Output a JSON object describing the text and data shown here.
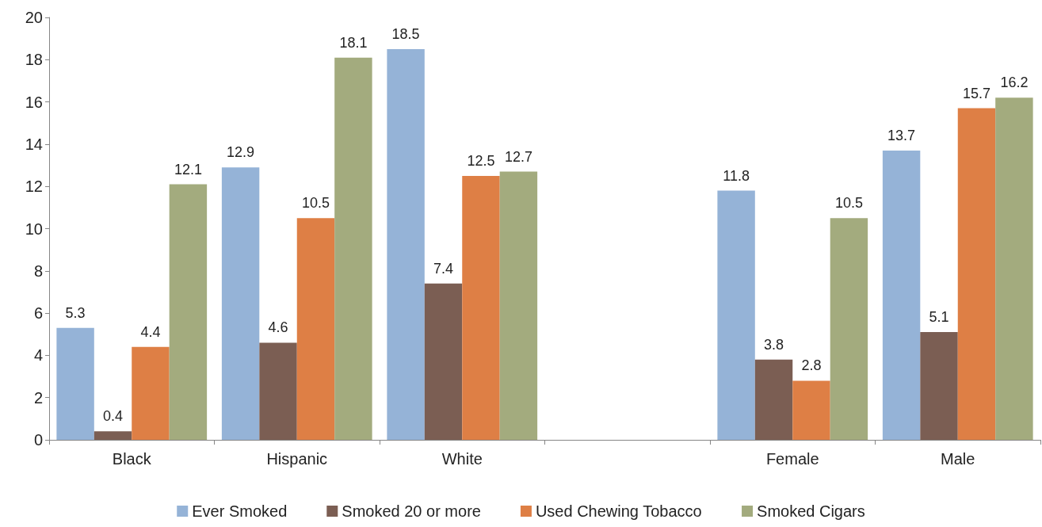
{
  "chart_data": {
    "type": "bar",
    "categories": [
      "Black",
      "Hispanic",
      "White",
      null,
      "Female",
      "Male"
    ],
    "series": [
      {
        "name": "Ever Smoked",
        "color": "#95b3d7",
        "values": [
          5.3,
          12.9,
          18.5,
          null,
          11.8,
          13.7
        ]
      },
      {
        "name": "Smoked 20 or more",
        "color": "#7b5e53",
        "values": [
          0.4,
          4.6,
          7.4,
          null,
          3.8,
          5.1
        ]
      },
      {
        "name": "Used Chewing Tobacco",
        "color": "#de7f45",
        "values": [
          4.4,
          10.5,
          12.5,
          null,
          2.8,
          15.7
        ]
      },
      {
        "name": "Smoked Cigars",
        "color": "#a3ab7e",
        "values": [
          12.1,
          18.1,
          12.7,
          null,
          10.5,
          16.2
        ]
      }
    ],
    "ylim": [
      0,
      20
    ],
    "yticks": [
      0,
      2,
      4,
      6,
      8,
      10,
      12,
      14,
      16,
      18,
      20
    ],
    "grid": false,
    "legend": "bottom",
    "data_labels": true
  }
}
